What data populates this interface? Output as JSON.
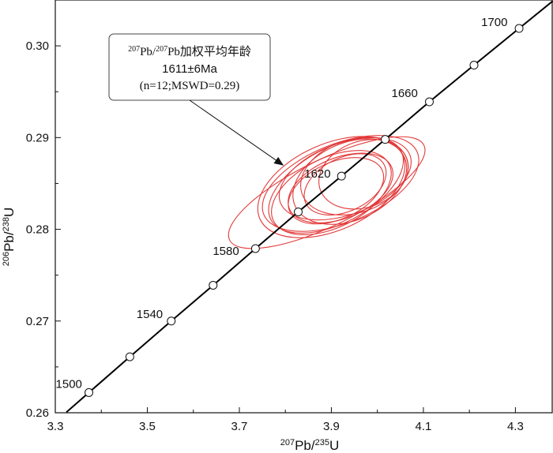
{
  "chart_data": {
    "type": "scatter",
    "subtype": "concordia",
    "xlabel": {
      "pre": "207",
      "base": "Pb/",
      "pre2": "235",
      "base2": "U"
    },
    "ylabel": {
      "pre": "206",
      "base": "Pb/",
      "pre2": "238",
      "base2": "U"
    },
    "xlim": [
      3.3,
      4.38
    ],
    "ylim": [
      0.26,
      0.305
    ],
    "x_ticks": [
      "3.3",
      "3.5",
      "3.7",
      "3.9",
      "4.1",
      "4.3"
    ],
    "x_tick_values": [
      3.3,
      3.5,
      3.7,
      3.9,
      4.1,
      4.3
    ],
    "y_ticks": [
      "0.26",
      "0.27",
      "0.28",
      "0.29",
      "0.30"
    ],
    "y_tick_values": [
      0.26,
      0.27,
      0.28,
      0.29,
      0.3
    ],
    "concordia_points": [
      {
        "age": 1500,
        "x": 3.373,
        "y": 0.2622,
        "label": "1500"
      },
      {
        "age": 1520,
        "x": 3.462,
        "y": 0.2661
      },
      {
        "age": 1540,
        "x": 3.552,
        "y": 0.27,
        "label": "1540"
      },
      {
        "age": 1560,
        "x": 3.643,
        "y": 0.2739
      },
      {
        "age": 1580,
        "x": 3.735,
        "y": 0.2779,
        "label": "1580"
      },
      {
        "age": 1600,
        "x": 3.828,
        "y": 0.2819
      },
      {
        "age": 1620,
        "x": 3.922,
        "y": 0.2858,
        "label": "1620"
      },
      {
        "age": 1640,
        "x": 4.017,
        "y": 0.2898
      },
      {
        "age": 1660,
        "x": 4.113,
        "y": 0.2939,
        "label": "1660"
      },
      {
        "age": 1680,
        "x": 4.21,
        "y": 0.2979
      },
      {
        "age": 1700,
        "x": 4.308,
        "y": 0.3019,
        "label": "1700"
      }
    ],
    "ellipses": [
      {
        "cx": 3.89,
        "cy": 0.284,
        "rx": 0.235,
        "ry": 0.0036,
        "angle": 26
      },
      {
        "cx": 3.9,
        "cy": 0.2846,
        "rx": 0.17,
        "ry": 0.0047,
        "angle": 24
      },
      {
        "cx": 3.92,
        "cy": 0.285,
        "rx": 0.18,
        "ry": 0.0043,
        "angle": 22
      },
      {
        "cx": 3.91,
        "cy": 0.2848,
        "rx": 0.16,
        "ry": 0.0041,
        "angle": 28
      },
      {
        "cx": 3.93,
        "cy": 0.2855,
        "rx": 0.15,
        "ry": 0.0039,
        "angle": 20
      },
      {
        "cx": 3.94,
        "cy": 0.2852,
        "rx": 0.13,
        "ry": 0.0042,
        "angle": 24
      },
      {
        "cx": 3.9,
        "cy": 0.284,
        "rx": 0.14,
        "ry": 0.0038,
        "angle": 26
      },
      {
        "cx": 3.92,
        "cy": 0.2845,
        "rx": 0.12,
        "ry": 0.0033,
        "angle": 22
      },
      {
        "cx": 3.95,
        "cy": 0.2858,
        "rx": 0.12,
        "ry": 0.004,
        "angle": 18
      },
      {
        "cx": 3.91,
        "cy": 0.2842,
        "rx": 0.11,
        "ry": 0.0031,
        "angle": 24
      },
      {
        "cx": 3.97,
        "cy": 0.286,
        "rx": 0.1,
        "ry": 0.0036,
        "angle": 20
      },
      {
        "cx": 3.93,
        "cy": 0.2849,
        "rx": 0.095,
        "ry": 0.0029,
        "angle": 26
      }
    ],
    "annotation": {
      "line1": {
        "pre": "207",
        "base": "Pb/",
        "pre2": "207",
        "base2": "Pb加权平均年龄"
      },
      "line2": "1611±6Ma",
      "line3": "(n=12;MSWD=0.29)",
      "arrow_target": {
        "x": 3.795,
        "y": 0.287
      }
    },
    "colors": {
      "ellipse": "#e23a3a",
      "curve": "#000000",
      "marker_fill": "#ffffff"
    },
    "grid": false
  }
}
